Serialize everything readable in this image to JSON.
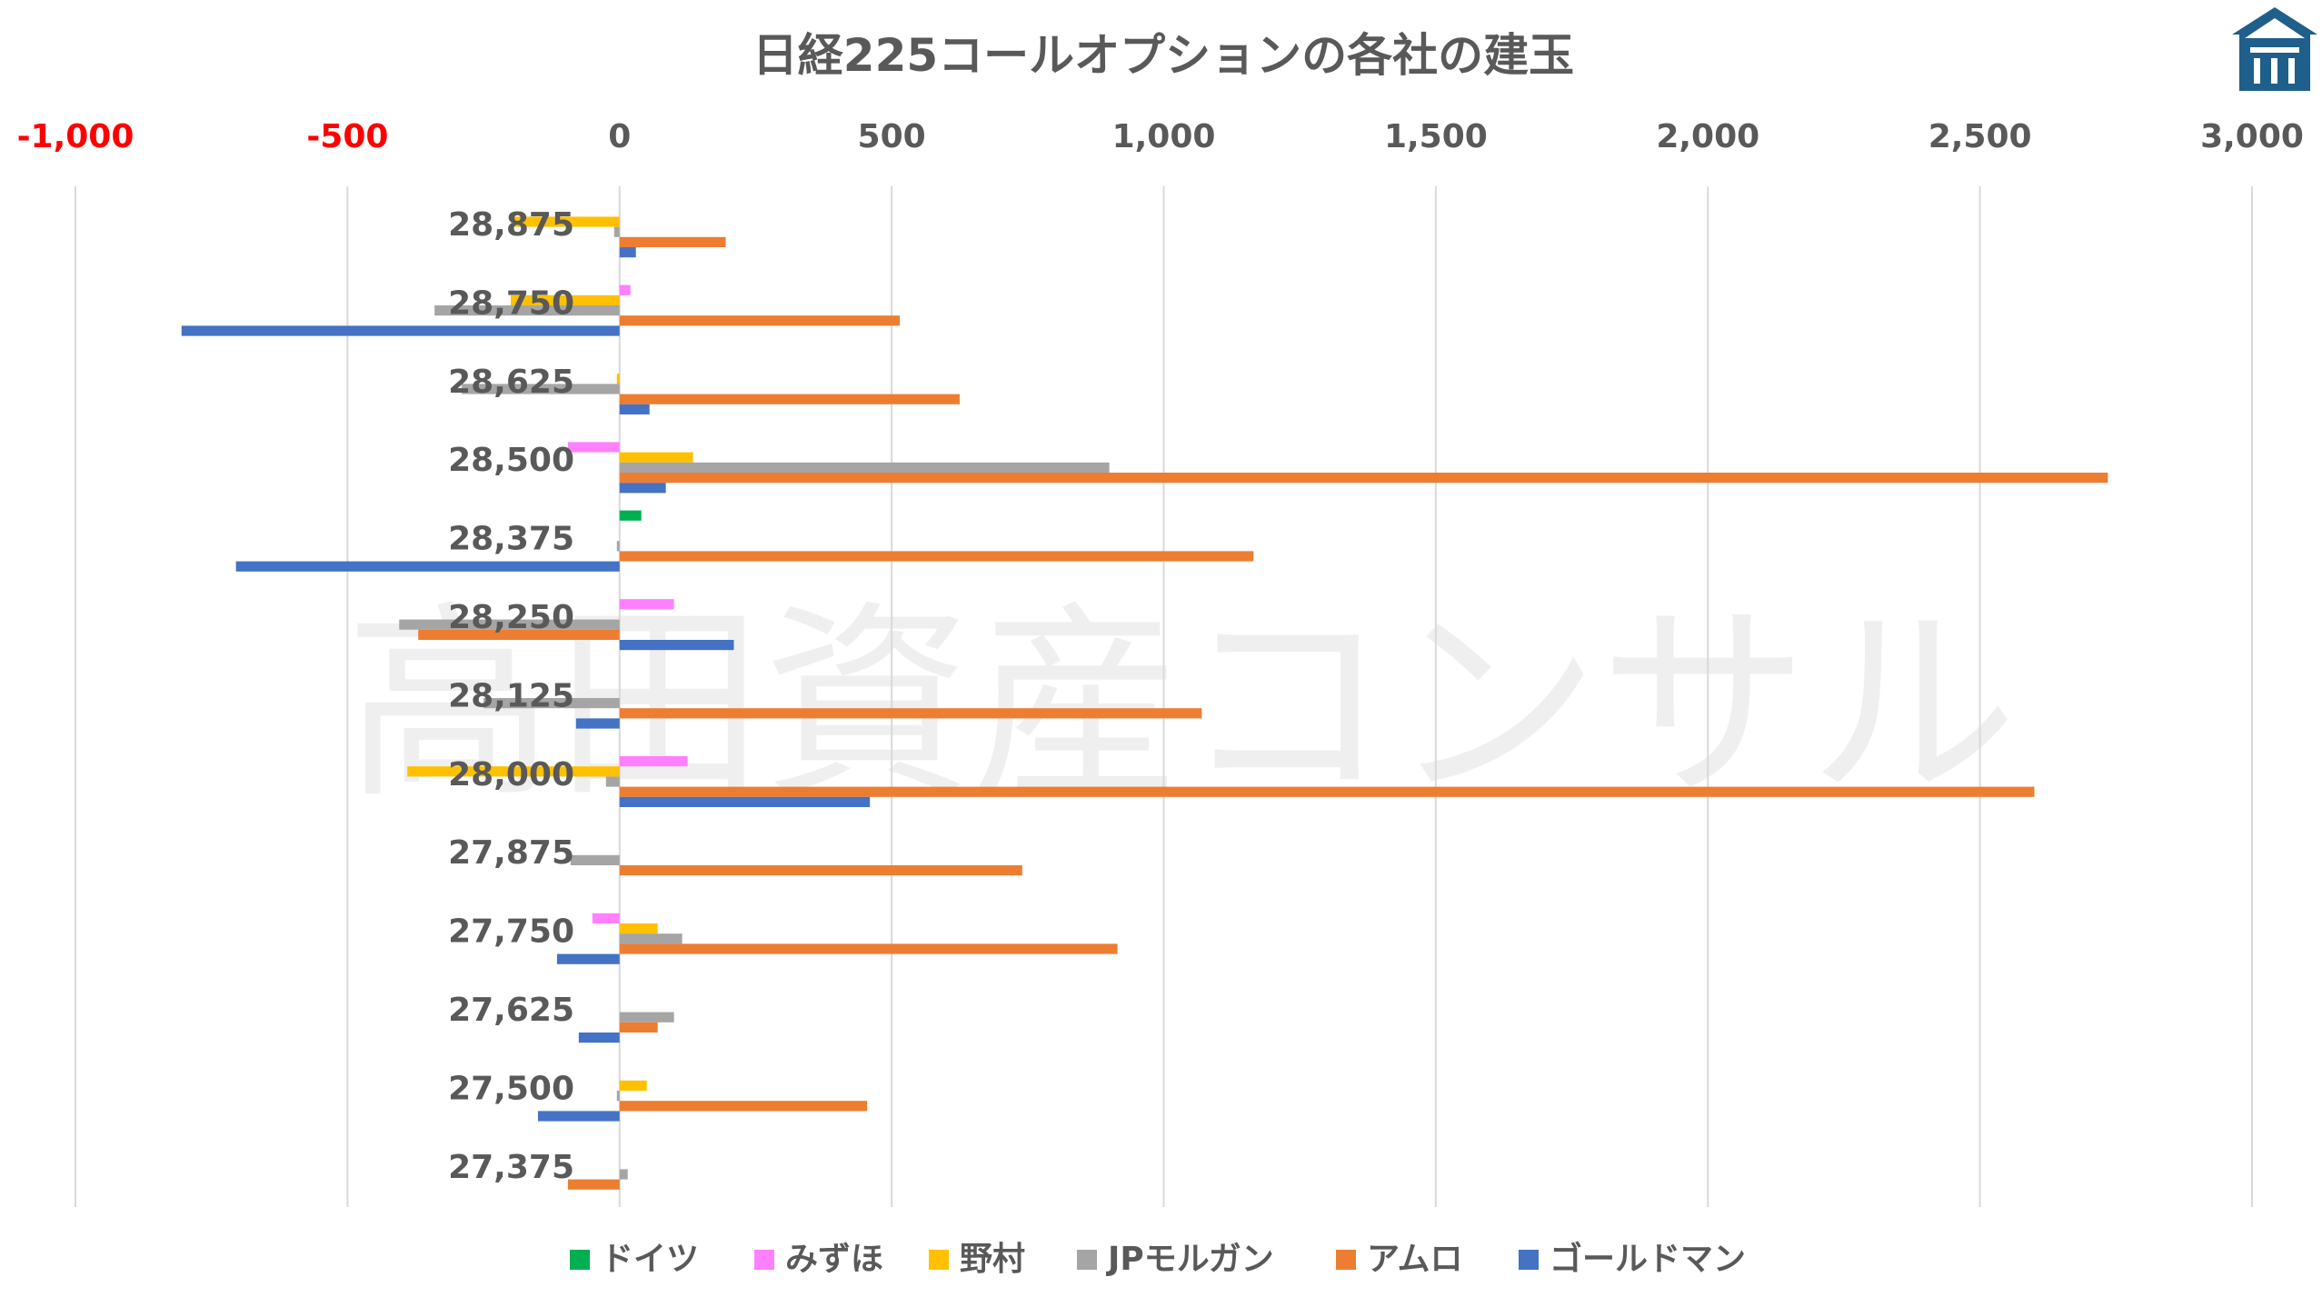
{
  "chart_data": {
    "type": "bar",
    "orientation": "horizontal",
    "title": "日経225コールオプションの各社の建玉",
    "watermark": "高田資産コンサル",
    "xlim": [
      -1000,
      3000
    ],
    "x_ticks": [
      -1000,
      -500,
      0,
      500,
      1000,
      1500,
      2000,
      2500,
      3000
    ],
    "x_tick_labels": [
      "-1,000",
      "-500",
      "0",
      "500",
      "1,000",
      "1,500",
      "2,000",
      "2,500",
      "3,000"
    ],
    "negative_tick_color": "#ff0000",
    "positive_tick_color": "#595959",
    "grid": "vertical",
    "legend_position": "bottom",
    "categories": [
      "28,875",
      "28,750",
      "28,625",
      "28,500",
      "28,375",
      "28,250",
      "28,125",
      "28,000",
      "27,875",
      "27,750",
      "27,625",
      "27,500",
      "27,375"
    ],
    "series": [
      {
        "name": "ドイツ",
        "color": "#00b050",
        "values": [
          0,
          0,
          0,
          0,
          40,
          0,
          0,
          0,
          0,
          0,
          0,
          0,
          0
        ]
      },
      {
        "name": "みずほ",
        "color": "#ff80ff",
        "values": [
          0,
          20,
          0,
          -95,
          0,
          100,
          0,
          125,
          0,
          -50,
          0,
          0,
          0
        ]
      },
      {
        "name": "野村",
        "color": "#ffc000",
        "values": [
          -200,
          -200,
          -5,
          135,
          0,
          0,
          0,
          -390,
          0,
          70,
          0,
          50,
          0
        ]
      },
      {
        "name": "JPモルガン",
        "color": "#a5a5a5",
        "values": [
          -10,
          -340,
          -290,
          900,
          -5,
          -405,
          -250,
          -25,
          -90,
          115,
          100,
          -5,
          15
        ]
      },
      {
        "name": "アムロ",
        "color": "#ed7d31",
        "values": [
          195,
          515,
          625,
          2735,
          1165,
          -370,
          1070,
          2600,
          740,
          915,
          70,
          455,
          -95
        ]
      },
      {
        "name": "ゴールドマン",
        "color": "#4472c4",
        "values": [
          30,
          -805,
          55,
          85,
          -705,
          210,
          -80,
          460,
          0,
          -115,
          -75,
          -150,
          0
        ]
      }
    ],
    "logo_icon": "building-logo-icon"
  }
}
